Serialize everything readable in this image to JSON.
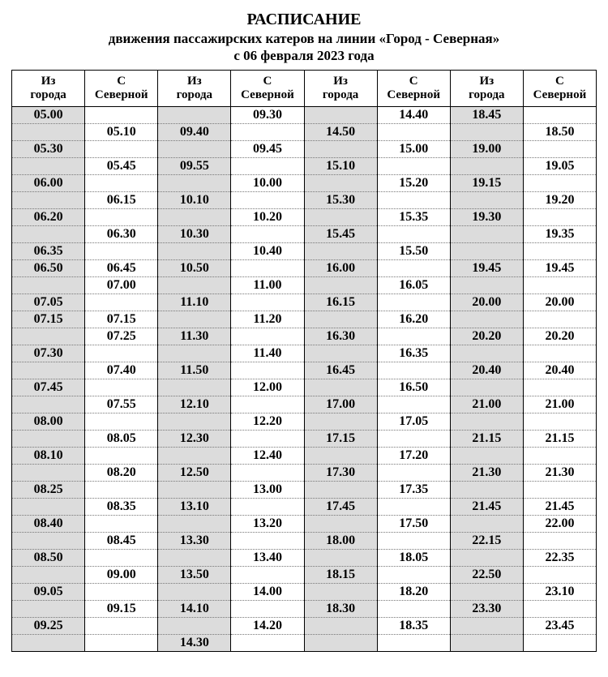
{
  "title": {
    "line1": "РАСПИСАНИЕ",
    "line2": "движения  пассажирских  катеров  на линии  «Город - Северная»",
    "line3": "с  06  февраля  2023  года"
  },
  "table": {
    "header_row_height": 40,
    "body_row_height": 20,
    "font_family": "Times New Roman",
    "body_font_size": 16,
    "body_font_weight": "bold",
    "header_font_size": 15,
    "header_font_weight": "bold",
    "background_color": "#ffffff",
    "shaded_column_color": "#dcdcdc",
    "text_color": "#000000",
    "outer_border_color": "#000000",
    "outer_border_width": 1,
    "vertical_border_style": "solid",
    "horizontal_border_style": "dotted",
    "horizontal_border_color": "#777777",
    "shaded_columns": [
      0,
      2,
      4,
      6
    ],
    "columns": [
      "Из города",
      "С Северной",
      "Из города",
      "С Северной",
      "Из города",
      "С Северной",
      "Из города",
      "С Северной"
    ],
    "rows": [
      [
        "05.00",
        "",
        "",
        "09.30",
        "",
        "14.40",
        "18.45",
        ""
      ],
      [
        "",
        "05.10",
        "09.40",
        "",
        "14.50",
        "",
        "",
        "18.50"
      ],
      [
        "05.30",
        "",
        "",
        "09.45",
        "",
        "15.00",
        "19.00",
        ""
      ],
      [
        "",
        "05.45",
        "09.55",
        "",
        "15.10",
        "",
        "",
        "19.05"
      ],
      [
        "06.00",
        "",
        "",
        "10.00",
        "",
        "15.20",
        "19.15",
        ""
      ],
      [
        "",
        "06.15",
        "10.10",
        "",
        "15.30",
        "",
        "",
        "19.20"
      ],
      [
        "06.20",
        "",
        "",
        "10.20",
        "",
        "15.35",
        "19.30",
        ""
      ],
      [
        "",
        "06.30",
        "10.30",
        "",
        "15.45",
        "",
        "",
        "19.35"
      ],
      [
        "06.35",
        "",
        "",
        "10.40",
        "",
        "15.50",
        "",
        ""
      ],
      [
        "06.50",
        "06.45",
        "10.50",
        "",
        "16.00",
        "",
        "19.45",
        "19.45"
      ],
      [
        "",
        "07.00",
        "",
        "11.00",
        "",
        "16.05",
        "",
        ""
      ],
      [
        "07.05",
        "",
        "11.10",
        "",
        "16.15",
        "",
        "20.00",
        "20.00"
      ],
      [
        "07.15",
        "07.15",
        "",
        "11.20",
        "",
        "16.20",
        "",
        ""
      ],
      [
        "",
        "07.25",
        "11.30",
        "",
        "16.30",
        "",
        "20.20",
        "20.20"
      ],
      [
        "07.30",
        "",
        "",
        "11.40",
        "",
        "16.35",
        "",
        ""
      ],
      [
        "",
        "07.40",
        "11.50",
        "",
        "16.45",
        "",
        "20.40",
        "20.40"
      ],
      [
        "07.45",
        "",
        "",
        "12.00",
        "",
        "16.50",
        "",
        ""
      ],
      [
        "",
        "07.55",
        "12.10",
        "",
        "17.00",
        "",
        "21.00",
        "21.00"
      ],
      [
        "08.00",
        "",
        "",
        "12.20",
        "",
        "17.05",
        "",
        ""
      ],
      [
        "",
        "08.05",
        "12.30",
        "",
        "17.15",
        "",
        "21.15",
        "21.15"
      ],
      [
        "08.10",
        "",
        "",
        "12.40",
        "",
        "17.20",
        "",
        ""
      ],
      [
        "",
        "08.20",
        "12.50",
        "",
        "17.30",
        "",
        "21.30",
        "21.30"
      ],
      [
        "08.25",
        "",
        "",
        "13.00",
        "",
        "17.35",
        "",
        ""
      ],
      [
        "",
        "08.35",
        "13.10",
        "",
        "17.45",
        "",
        "21.45",
        "21.45"
      ],
      [
        "08.40",
        "",
        "",
        "13.20",
        "",
        "17.50",
        "",
        "22.00"
      ],
      [
        "",
        "08.45",
        "13.30",
        "",
        "18.00",
        "",
        "22.15",
        ""
      ],
      [
        "08.50",
        "",
        "",
        "13.40",
        "",
        "18.05",
        "",
        "22.35"
      ],
      [
        "",
        "09.00",
        "13.50",
        "",
        "18.15",
        "",
        "22.50",
        ""
      ],
      [
        "09.05",
        "",
        "",
        "14.00",
        "",
        "18.20",
        "",
        "23.10"
      ],
      [
        "",
        "09.15",
        "14.10",
        "",
        "18.30",
        "",
        "23.30",
        ""
      ],
      [
        "09.25",
        "",
        "",
        "14.20",
        "",
        "18.35",
        "",
        "23.45"
      ],
      [
        "",
        "",
        "14.30",
        "",
        "",
        "",
        "",
        ""
      ]
    ]
  }
}
